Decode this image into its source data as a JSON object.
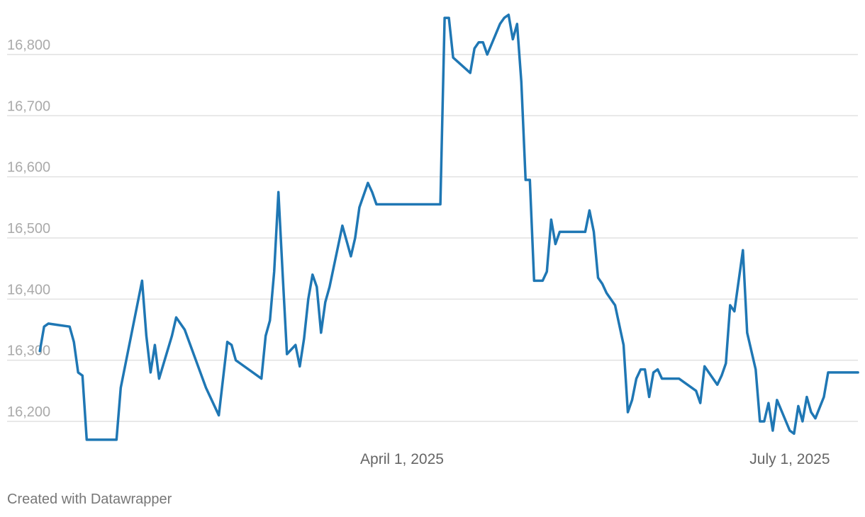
{
  "chart_data": {
    "type": "line",
    "title": "",
    "xlabel": "",
    "ylabel": "",
    "ylim": [
      16150,
      16880
    ],
    "xlim": [
      "2025-01-06",
      "2025-07-20"
    ],
    "y_ticks": [
      16200,
      16300,
      16400,
      16500,
      16600,
      16700,
      16800
    ],
    "y_tick_labels": [
      "16,200",
      "16,300",
      "16,400",
      "16,500",
      "16,600",
      "16,700",
      "16,800"
    ],
    "x_ticks": [
      "2025-04-01",
      "2025-07-01"
    ],
    "x_tick_labels": [
      "April 1, 2025",
      "July 1, 2025"
    ],
    "grid": true,
    "series": [
      {
        "color": "#1f77b4",
        "x": [
          "2025-01-06",
          "2025-01-07",
          "2025-01-08",
          "2025-01-10",
          "2025-01-13",
          "2025-01-14",
          "2025-01-15",
          "2025-01-16",
          "2025-01-17",
          "2025-01-19",
          "2025-01-24",
          "2025-01-25",
          "2025-01-30",
          "2025-01-31",
          "2025-02-01",
          "2025-02-02",
          "2025-02-03",
          "2025-02-06",
          "2025-02-07",
          "2025-02-08",
          "2025-02-09",
          "2025-02-14",
          "2025-02-17",
          "2025-02-19",
          "2025-02-20",
          "2025-02-21",
          "2025-02-22",
          "2025-02-27",
          "2025-02-28",
          "2025-03-01",
          "2025-03-02",
          "2025-03-03",
          "2025-03-04",
          "2025-03-05",
          "2025-03-07",
          "2025-03-08",
          "2025-03-09",
          "2025-03-10",
          "2025-03-11",
          "2025-03-12",
          "2025-03-13",
          "2025-03-14",
          "2025-03-15",
          "2025-03-18",
          "2025-03-20",
          "2025-03-21",
          "2025-03-22",
          "2025-03-24",
          "2025-03-25",
          "2025-03-26",
          "2025-03-27",
          "2025-04-10",
          "2025-04-11",
          "2025-04-12",
          "2025-04-13",
          "2025-04-17",
          "2025-04-18",
          "2025-04-19",
          "2025-04-20",
          "2025-04-21",
          "2025-04-24",
          "2025-04-25",
          "2025-04-26",
          "2025-04-27",
          "2025-04-28",
          "2025-04-29",
          "2025-04-30",
          "2025-05-01",
          "2025-05-02",
          "2025-05-03",
          "2025-05-04",
          "2025-05-05",
          "2025-05-06",
          "2025-05-07",
          "2025-05-08",
          "2025-05-09",
          "2025-05-14",
          "2025-05-15",
          "2025-05-16",
          "2025-05-17",
          "2025-05-18",
          "2025-05-19",
          "2025-05-21",
          "2025-05-23",
          "2025-05-24",
          "2025-05-25",
          "2025-05-26",
          "2025-05-27",
          "2025-05-28",
          "2025-05-29",
          "2025-05-30",
          "2025-05-31",
          "2025-06-01",
          "2025-06-02",
          "2025-06-04",
          "2025-06-05",
          "2025-06-06",
          "2025-06-09",
          "2025-06-10",
          "2025-06-11",
          "2025-06-14",
          "2025-06-15",
          "2025-06-16",
          "2025-06-17",
          "2025-06-18",
          "2025-06-20",
          "2025-06-21",
          "2025-06-23",
          "2025-06-24",
          "2025-06-25",
          "2025-06-26",
          "2025-06-27",
          "2025-06-28",
          "2025-07-01",
          "2025-07-02",
          "2025-07-03",
          "2025-07-04",
          "2025-07-05",
          "2025-07-06",
          "2025-07-07",
          "2025-07-09",
          "2025-07-10",
          "2025-07-11",
          "2025-07-12",
          "2025-07-14",
          "2025-07-16",
          "2025-07-17"
        ],
        "y": [
          16315,
          16355,
          16360,
          16358,
          16355,
          16330,
          16280,
          16275,
          16170,
          16170,
          16170,
          16255,
          16430,
          16340,
          16280,
          16325,
          16270,
          16340,
          16370,
          16360,
          16350,
          16255,
          16210,
          16330,
          16325,
          16300,
          16295,
          16270,
          16340,
          16365,
          16445,
          16575,
          16440,
          16310,
          16325,
          16290,
          16335,
          16400,
          16440,
          16420,
          16345,
          16395,
          16420,
          16520,
          16470,
          16500,
          16550,
          16590,
          16575,
          16555,
          16555,
          16555,
          16860,
          16860,
          16795,
          16770,
          16810,
          16820,
          16820,
          16800,
          16850,
          16860,
          16865,
          16825,
          16850,
          16755,
          16595,
          16595,
          16430,
          16430,
          16430,
          16445,
          16530,
          16490,
          16510,
          16510,
          16510,
          16545,
          16510,
          16435,
          16425,
          16410,
          16390,
          16325,
          16215,
          16235,
          16270,
          16285,
          16285,
          16240,
          16280,
          16285,
          16270,
          16270,
          16270,
          16270,
          16265,
          16250,
          16230,
          16290,
          16260,
          16275,
          16295,
          16390,
          16380,
          16480,
          16345,
          16285,
          16200,
          16200,
          16230,
          16185,
          16235,
          16185,
          16180,
          16225,
          16200,
          16240,
          16215,
          16205,
          16240,
          16280,
          16280,
          16280,
          16280,
          16280,
          16280
        ]
      }
    ]
  },
  "footer": {
    "credit": "Created with Datawrapper"
  }
}
